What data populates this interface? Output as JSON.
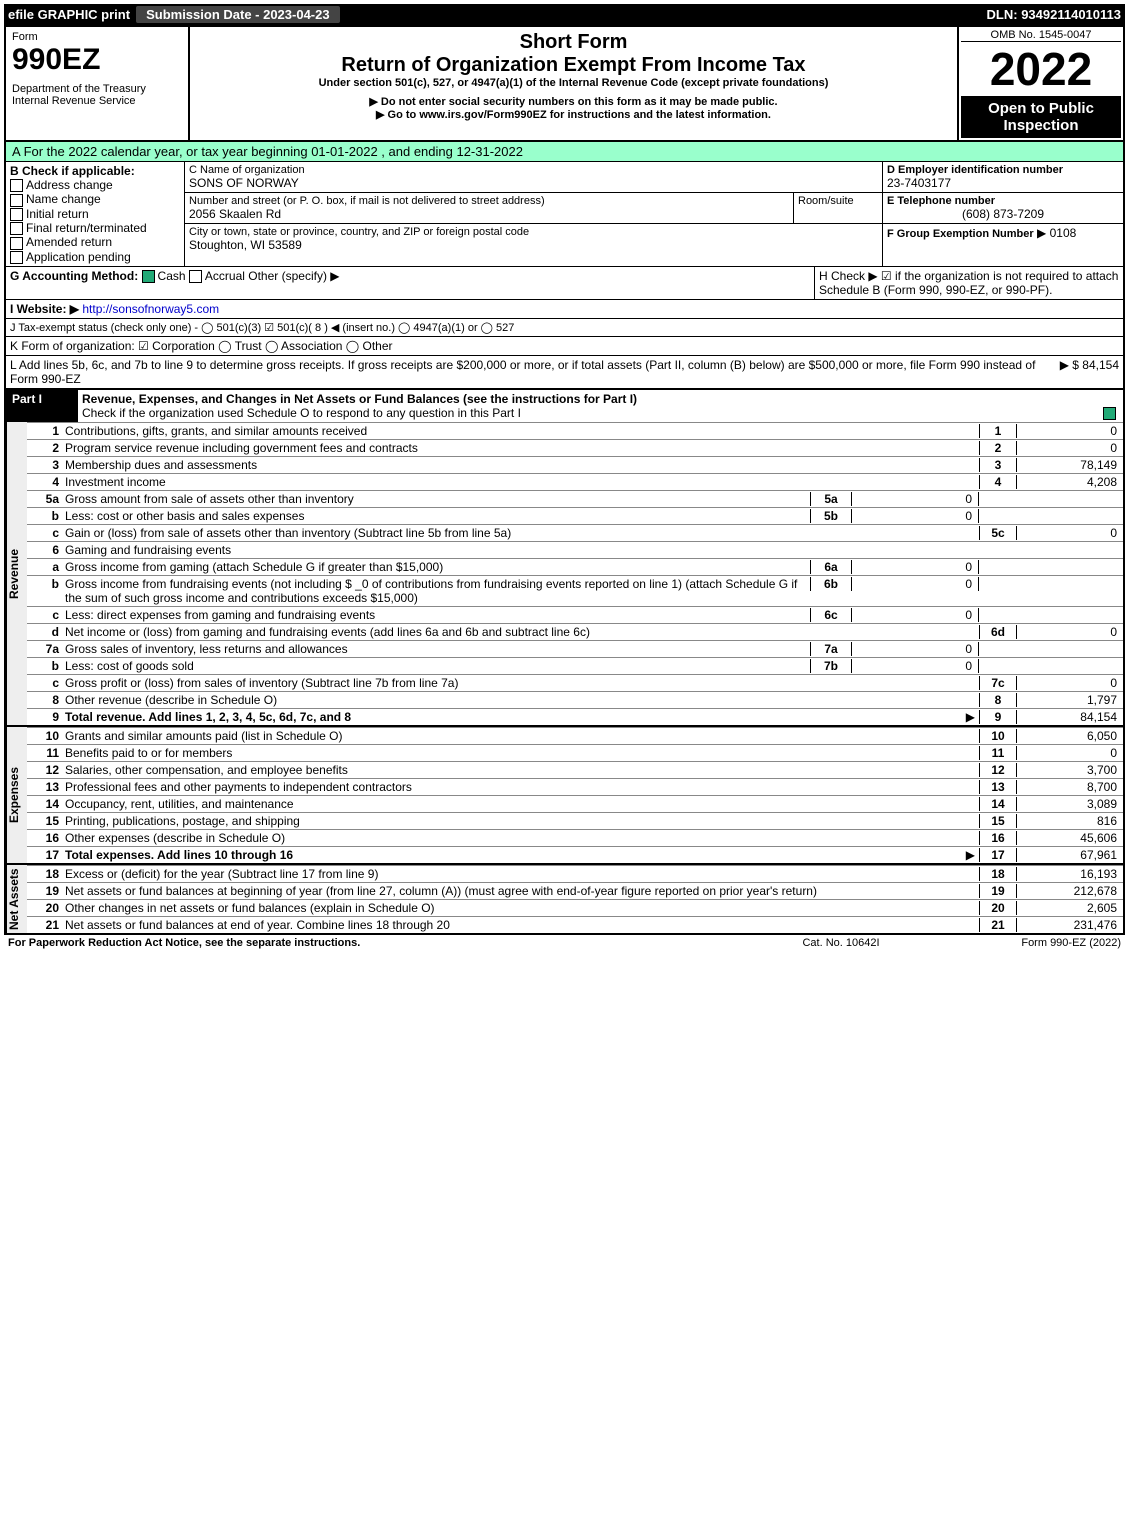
{
  "topbar": {
    "efile": "efile GRAPHIC print",
    "submission": "Submission Date - 2023-04-23",
    "dln": "DLN: 93492114010113"
  },
  "hdr": {
    "form": "Form",
    "num": "990EZ",
    "dept": "Department of the Treasury",
    "irs": "Internal Revenue Service",
    "title1": "Short Form",
    "title2": "Return of Organization Exempt From Income Tax",
    "sub": "Under section 501(c), 527, or 4947(a)(1) of the Internal Revenue Code (except private foundations)",
    "warn1": "▶ Do not enter social security numbers on this form as it may be made public.",
    "warn2": "▶ Go to www.irs.gov/Form990EZ for instructions and the latest information.",
    "omb": "OMB No. 1545-0047",
    "year": "2022",
    "open": "Open to Public Inspection"
  },
  "a": {
    "text": "A  For the 2022 calendar year, or tax year beginning 01-01-2022 , and ending 12-31-2022"
  },
  "b": {
    "hdr": "B  Check if applicable:",
    "opts": [
      "Address change",
      "Name change",
      "Initial return",
      "Final return/terminated",
      "Amended return",
      "Application pending"
    ]
  },
  "c": {
    "name_lbl": "C Name of organization",
    "name": "SONS OF NORWAY",
    "addr_lbl": "Number and street (or P. O. box, if mail is not delivered to street address)",
    "room": "Room/suite",
    "addr": "2056 Skaalen Rd",
    "city_lbl": "City or town, state or province, country, and ZIP or foreign postal code",
    "city": "Stoughton, WI  53589"
  },
  "d": {
    "lbl": "D Employer identification number",
    "val": "23-7403177"
  },
  "e": {
    "lbl": "E Telephone number",
    "val": "(608) 873-7209"
  },
  "f": {
    "lbl": "F Group Exemption Number",
    "val": "▶ 0108"
  },
  "g": {
    "lbl": "G Accounting Method:",
    "cash": "Cash",
    "accrual": "Accrual",
    "other": "Other (specify) ▶"
  },
  "h": {
    "text": "H   Check ▶ ☑ if the organization is not required to attach Schedule B (Form 990, 990-EZ, or 990-PF)."
  },
  "i": {
    "lbl": "I Website: ▶",
    "url": "http://sonsofnorway5.com"
  },
  "j": {
    "text": "J Tax-exempt status (check only one) - ◯ 501(c)(3)  ☑ 501(c)( 8 ) ◀ (insert no.)  ◯ 4947(a)(1) or  ◯ 527"
  },
  "k": {
    "text": "K Form of organization:  ☑ Corporation  ◯ Trust  ◯ Association  ◯ Other"
  },
  "l": {
    "text": "L Add lines 5b, 6c, and 7b to line 9 to determine gross receipts. If gross receipts are $200,000 or more, or if total assets (Part II, column (B) below) are $500,000 or more, file Form 990 instead of Form 990-EZ",
    "amt": "▶ $ 84,154"
  },
  "part1": {
    "hdr": "Part I",
    "title": "Revenue, Expenses, and Changes in Net Assets or Fund Balances (see the instructions for Part I)",
    "chk": "Check if the organization used Schedule O to respond to any question in this Part I"
  },
  "rev_lbl": "Revenue",
  "exp_lbl": "Expenses",
  "net_lbl": "Net Assets",
  "lines": [
    {
      "n": "1",
      "t": "Contributions, gifts, grants, and similar amounts received",
      "c": "1",
      "v": "0"
    },
    {
      "n": "2",
      "t": "Program service revenue including government fees and contracts",
      "c": "2",
      "v": "0"
    },
    {
      "n": "3",
      "t": "Membership dues and assessments",
      "c": "3",
      "v": "78,149"
    },
    {
      "n": "4",
      "t": "Investment income",
      "c": "4",
      "v": "4,208"
    },
    {
      "n": "5a",
      "t": "Gross amount from sale of assets other than inventory",
      "sc": "5a",
      "sv": "0"
    },
    {
      "n": "b",
      "t": "Less: cost or other basis and sales expenses",
      "sc": "5b",
      "sv": "0"
    },
    {
      "n": "c",
      "t": "Gain or (loss) from sale of assets other than inventory (Subtract line 5b from line 5a)",
      "c": "5c",
      "v": "0"
    },
    {
      "n": "6",
      "t": "Gaming and fundraising events"
    },
    {
      "n": "a",
      "t": "Gross income from gaming (attach Schedule G if greater than $15,000)",
      "sc": "6a",
      "sv": "0"
    },
    {
      "n": "b",
      "t": "Gross income from fundraising events (not including $ _0   of contributions from fundraising events reported on line 1) (attach Schedule G if the sum of such gross income and contributions exceeds $15,000)",
      "sc": "6b",
      "sv": "0"
    },
    {
      "n": "c",
      "t": "Less: direct expenses from gaming and fundraising events",
      "sc": "6c",
      "sv": "0"
    },
    {
      "n": "d",
      "t": "Net income or (loss) from gaming and fundraising events (add lines 6a and 6b and subtract line 6c)",
      "c": "6d",
      "v": "0"
    },
    {
      "n": "7a",
      "t": "Gross sales of inventory, less returns and allowances",
      "sc": "7a",
      "sv": "0"
    },
    {
      "n": "b",
      "t": "Less: cost of goods sold",
      "sc": "7b",
      "sv": "0"
    },
    {
      "n": "c",
      "t": "Gross profit or (loss) from sales of inventory (Subtract line 7b from line 7a)",
      "c": "7c",
      "v": "0"
    },
    {
      "n": "8",
      "t": "Other revenue (describe in Schedule O)",
      "c": "8",
      "v": "1,797"
    },
    {
      "n": "9",
      "t": "Total revenue. Add lines 1, 2, 3, 4, 5c, 6d, 7c, and 8",
      "arrow": "▶",
      "c": "9",
      "v": "84,154",
      "bold": true
    }
  ],
  "exp": [
    {
      "n": "10",
      "t": "Grants and similar amounts paid (list in Schedule O)",
      "c": "10",
      "v": "6,050"
    },
    {
      "n": "11",
      "t": "Benefits paid to or for members",
      "c": "11",
      "v": "0"
    },
    {
      "n": "12",
      "t": "Salaries, other compensation, and employee benefits",
      "c": "12",
      "v": "3,700"
    },
    {
      "n": "13",
      "t": "Professional fees and other payments to independent contractors",
      "c": "13",
      "v": "8,700"
    },
    {
      "n": "14",
      "t": "Occupancy, rent, utilities, and maintenance",
      "c": "14",
      "v": "3,089"
    },
    {
      "n": "15",
      "t": "Printing, publications, postage, and shipping",
      "c": "15",
      "v": "816"
    },
    {
      "n": "16",
      "t": "Other expenses (describe in Schedule O)",
      "c": "16",
      "v": "45,606"
    },
    {
      "n": "17",
      "t": "Total expenses. Add lines 10 through 16",
      "arrow": "▶",
      "c": "17",
      "v": "67,961",
      "bold": true
    }
  ],
  "net": [
    {
      "n": "18",
      "t": "Excess or (deficit) for the year (Subtract line 17 from line 9)",
      "c": "18",
      "v": "16,193"
    },
    {
      "n": "19",
      "t": "Net assets or fund balances at beginning of year (from line 27, column (A)) (must agree with end-of-year figure reported on prior year's return)",
      "c": "19",
      "v": "212,678"
    },
    {
      "n": "20",
      "t": "Other changes in net assets or fund balances (explain in Schedule O)",
      "c": "20",
      "v": "2,605"
    },
    {
      "n": "21",
      "t": "Net assets or fund balances at end of year. Combine lines 18 through 20",
      "c": "21",
      "v": "231,476"
    }
  ],
  "footer": {
    "pra": "For Paperwork Reduction Act Notice, see the separate instructions.",
    "cat": "Cat. No. 10642I",
    "form": "Form 990-EZ (2022)"
  }
}
